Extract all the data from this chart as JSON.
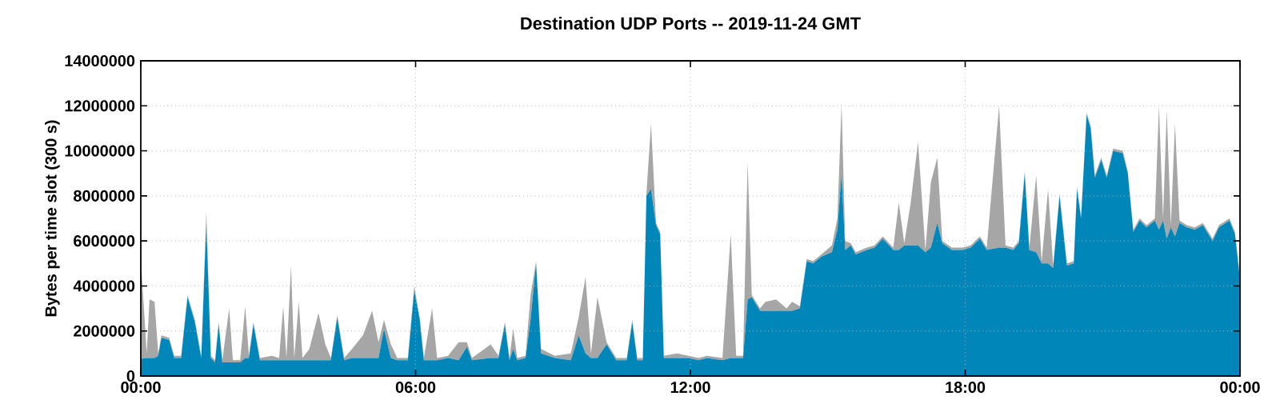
{
  "chart_data": {
    "type": "area",
    "title": "Destination UDP Ports -- 2019-11-24 GMT",
    "ylabel": "Bytes per time slot (300 s)",
    "stacked": true,
    "grid": true,
    "xlim": [
      0,
      24
    ],
    "xticks": [
      {
        "value": 0,
        "label": "00:00"
      },
      {
        "value": 6,
        "label": "06:00"
      },
      {
        "value": 12,
        "label": "12:00"
      },
      {
        "value": 18,
        "label": "18:00"
      },
      {
        "value": 24,
        "label": "00:00"
      }
    ],
    "ylim": [
      0,
      14000000
    ],
    "yticks": [
      0,
      2000000,
      4000000,
      6000000,
      8000000,
      10000000,
      12000000,
      14000000
    ],
    "x": [
      0,
      0.13,
      0.19,
      0.3,
      0.38,
      0.45,
      0.62,
      0.73,
      0.88,
      1.02,
      1.18,
      1.32,
      1.43,
      1.53,
      1.62,
      1.7,
      1.78,
      1.93,
      2.01,
      2.17,
      2.28,
      2.36,
      2.46,
      2.6,
      2.86,
      3.02,
      3.11,
      3.18,
      3.28,
      3.35,
      3.45,
      3.53,
      3.68,
      3.88,
      4.03,
      4.15,
      4.29,
      4.44,
      4.61,
      4.85,
      5.05,
      5.19,
      5.31,
      5.46,
      5.6,
      5.83,
      5.97,
      6.09,
      6.18,
      6.36,
      6.47,
      6.71,
      6.94,
      7.12,
      7.23,
      7.64,
      7.81,
      7.95,
      8.05,
      8.13,
      8.22,
      8.4,
      8.51,
      8.63,
      8.74,
      9.04,
      9.39,
      9.56,
      9.71,
      9.83,
      9.97,
      10.17,
      10.38,
      10.61,
      10.73,
      10.84,
      10.96,
      11.04,
      11.14,
      11.25,
      11.34,
      11.42,
      11.71,
      11.95,
      12.18,
      12.36,
      12.7,
      12.88,
      13.0,
      13.15,
      13.25,
      13.34,
      13.52,
      13.64,
      13.87,
      14.1,
      14.22,
      14.39,
      14.54,
      14.68,
      14.86,
      15.09,
      15.21,
      15.3,
      15.38,
      15.5,
      15.61,
      15.85,
      16.02,
      16.2,
      16.43,
      16.55,
      16.67,
      16.81,
      16.97,
      17.13,
      17.25,
      17.39,
      17.5,
      17.71,
      17.95,
      18.12,
      18.32,
      18.47,
      18.74,
      18.88,
      19.05,
      19.17,
      19.3,
      19.4,
      19.55,
      19.67,
      19.81,
      19.92,
      20.06,
      20.22,
      20.37,
      20.44,
      20.53,
      20.65,
      20.74,
      20.83,
      20.97,
      21.09,
      21.23,
      21.44,
      21.55,
      21.67,
      21.81,
      21.96,
      22.14,
      22.23,
      22.32,
      22.4,
      22.49,
      22.58,
      22.68,
      22.84,
      23.01,
      23.19,
      23.4,
      23.54,
      23.77,
      23.89,
      24
    ],
    "series": [
      {
        "color": "#0086b8",
        "values": [
          760000,
          800000,
          800000,
          800000,
          900000,
          1700000,
          1600000,
          800000,
          800000,
          3500000,
          2400000,
          800000,
          6800000,
          800000,
          600000,
          2300000,
          600000,
          600000,
          600000,
          600000,
          800000,
          800000,
          2300000,
          700000,
          700000,
          700000,
          700000,
          700000,
          700000,
          700000,
          700000,
          700000,
          700000,
          700000,
          700000,
          700000,
          2600000,
          700000,
          800000,
          800000,
          800000,
          800000,
          2100000,
          800000,
          700000,
          700000,
          3800000,
          2500000,
          700000,
          700000,
          700000,
          800000,
          700000,
          1300000,
          700000,
          800000,
          800000,
          2300000,
          700000,
          1200000,
          700000,
          800000,
          2500000,
          5000000,
          1000000,
          800000,
          700000,
          1800000,
          1000000,
          800000,
          800000,
          1400000,
          700000,
          700000,
          2400000,
          700000,
          700000,
          8000000,
          8300000,
          6700000,
          6300000,
          800000,
          800000,
          800000,
          700000,
          800000,
          700000,
          800000,
          800000,
          800000,
          3400000,
          3500000,
          2900000,
          2900000,
          2900000,
          2900000,
          2900000,
          3000000,
          5100000,
          5000000,
          5300000,
          5500000,
          6500000,
          9000000,
          5600000,
          5800000,
          5400000,
          5600000,
          5700000,
          6100000,
          5600000,
          5600000,
          5800000,
          5800000,
          5800000,
          5500000,
          5700000,
          6800000,
          5900000,
          5600000,
          5600000,
          5700000,
          6100000,
          5600000,
          5700000,
          5700000,
          5600000,
          5900000,
          9000000,
          5600000,
          5500000,
          5000000,
          5000000,
          4800000,
          8000000,
          4900000,
          5000000,
          8300000,
          7000000,
          11600000,
          11000000,
          8800000,
          9600000,
          8800000,
          10000000,
          9900000,
          9000000,
          6400000,
          6900000,
          6600000,
          6900000,
          6500000,
          6900000,
          6100000,
          6600000,
          6200000,
          6800000,
          6600000,
          6500000,
          6700000,
          6000000,
          6600000,
          6900000,
          6300000,
          4300000
        ]
      },
      {
        "color": "#a6a6a6",
        "values": [
          4440000,
          200000,
          2600000,
          2500000,
          100000,
          100000,
          100000,
          100000,
          100000,
          100000,
          100000,
          100000,
          500000,
          100000,
          100000,
          100000,
          100000,
          2400000,
          100000,
          100000,
          2300000,
          100000,
          100000,
          100000,
          200000,
          100000,
          2400000,
          100000,
          4200000,
          100000,
          2600000,
          100000,
          500000,
          2100000,
          700000,
          100000,
          100000,
          100000,
          400000,
          1000000,
          2100000,
          700000,
          400000,
          600000,
          100000,
          100000,
          200000,
          100000,
          100000,
          2300000,
          100000,
          100000,
          800000,
          200000,
          100000,
          600000,
          100000,
          100000,
          100000,
          900000,
          100000,
          100000,
          1100000,
          100000,
          200000,
          100000,
          300000,
          800000,
          3400000,
          200000,
          2700000,
          100000,
          100000,
          100000,
          100000,
          100000,
          100000,
          100000,
          2900000,
          100000,
          100000,
          100000,
          200000,
          100000,
          100000,
          100000,
          100000,
          5500000,
          100000,
          100000,
          6100000,
          100000,
          100000,
          400000,
          500000,
          100000,
          400000,
          100000,
          100000,
          100000,
          100000,
          300000,
          500000,
          3100000,
          400000,
          100000,
          100000,
          100000,
          100000,
          100000,
          100000,
          2100000,
          100000,
          1900000,
          4600000,
          100000,
          2900000,
          2900000,
          100000,
          100000,
          100000,
          100000,
          100000,
          100000,
          6300000,
          100000,
          100000,
          100000,
          100000,
          100000,
          3400000,
          100000,
          3300000,
          100000,
          100000,
          100000,
          100000,
          100000,
          100000,
          100000,
          100000,
          100000,
          100000,
          100000,
          100000,
          100000,
          100000,
          100000,
          100000,
          100000,
          100000,
          5500000,
          100000,
          5700000,
          100000,
          5000000,
          100000,
          100000,
          100000,
          100000,
          100000,
          100000,
          100000,
          100000,
          100000
        ]
      }
    ]
  }
}
